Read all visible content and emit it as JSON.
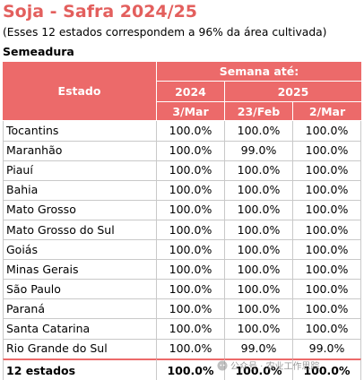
{
  "title": "Soja - Safra 2024/25",
  "subtitle": "(Esses 12 estados correspondem a 96% da área cultivada)",
  "section_label": "Semeadura",
  "header": {
    "estado_label": "Estado",
    "semana_label": "Semana até:",
    "year_2024": "2024",
    "year_2025": "2025",
    "col_2024_date": "3/Mar",
    "col_2025_a_date": "23/Feb",
    "col_2025_b_date": "2/Mar"
  },
  "rows": [
    {
      "state": "Tocantins",
      "v2024": "100.0%",
      "v2025a": "100.0%",
      "v2025b": "100.0%"
    },
    {
      "state": "Maranhão",
      "v2024": "100.0%",
      "v2025a": "99.0%",
      "v2025b": "100.0%"
    },
    {
      "state": "Piauí",
      "v2024": "100.0%",
      "v2025a": "100.0%",
      "v2025b": "100.0%"
    },
    {
      "state": "Bahia",
      "v2024": "100.0%",
      "v2025a": "100.0%",
      "v2025b": "100.0%"
    },
    {
      "state": "Mato Grosso",
      "v2024": "100.0%",
      "v2025a": "100.0%",
      "v2025b": "100.0%"
    },
    {
      "state": "Mato Grosso do Sul",
      "v2024": "100.0%",
      "v2025a": "100.0%",
      "v2025b": "100.0%"
    },
    {
      "state": "Goiás",
      "v2024": "100.0%",
      "v2025a": "100.0%",
      "v2025b": "100.0%"
    },
    {
      "state": "Minas Gerais",
      "v2024": "100.0%",
      "v2025a": "100.0%",
      "v2025b": "100.0%"
    },
    {
      "state": "São Paulo",
      "v2024": "100.0%",
      "v2025a": "100.0%",
      "v2025b": "100.0%"
    },
    {
      "state": "Paraná",
      "v2024": "100.0%",
      "v2025a": "100.0%",
      "v2025b": "100.0%"
    },
    {
      "state": "Santa Catarina",
      "v2024": "100.0%",
      "v2025a": "100.0%",
      "v2025b": "100.0%"
    },
    {
      "state": "Rio Grande do Sul",
      "v2024": "100.0%",
      "v2025a": "99.0%",
      "v2025b": "99.0%"
    }
  ],
  "total": {
    "label": "12 estados",
    "v2024": "100.0%",
    "v2025a": "100.0%",
    "v2025b": "100.0%"
  },
  "watermark_text": "公众号 · 农业工作思踪",
  "colors": {
    "accent": "#ec6a6a",
    "title": "#e35f5d",
    "total_rule": "#ec6a6a"
  }
}
